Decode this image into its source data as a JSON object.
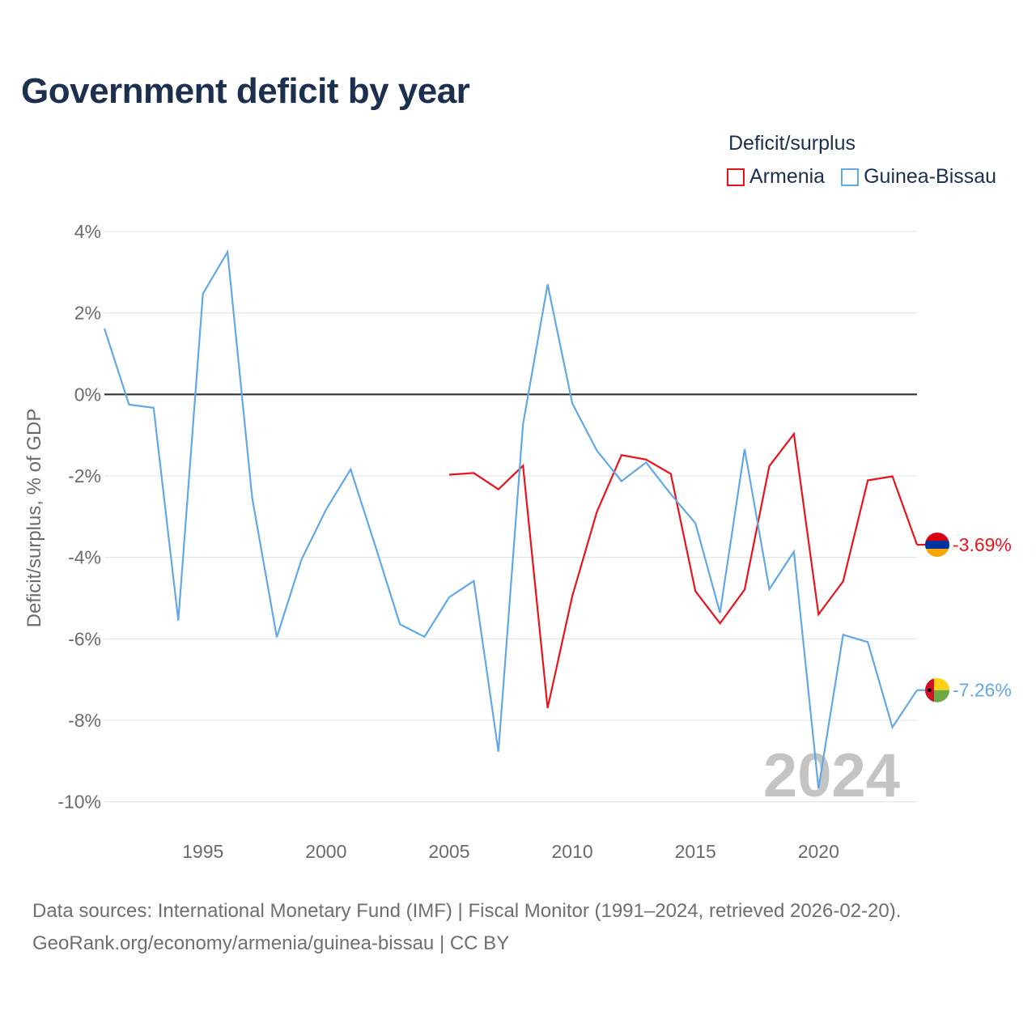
{
  "title": "Government deficit by year",
  "legend": {
    "title": "Deficit/surplus",
    "items": [
      {
        "name": "Armenia",
        "color": "#e8141c"
      },
      {
        "name": "Guinea-Bissau",
        "color": "#62a8e5"
      }
    ]
  },
  "chart_data": {
    "type": "line",
    "ylabel": "Deficit/surplus, % of GDP",
    "xlabel": "",
    "xlim": [
      1991,
      2024
    ],
    "ylim": [
      -10.6,
      4
    ],
    "yticks": [
      4,
      2,
      0,
      -2,
      -4,
      -6,
      -8,
      -10
    ],
    "ytick_labels": [
      "4%",
      "2%",
      "0%",
      "-2%",
      "-4%",
      "-6%",
      "-8%",
      "-10%"
    ],
    "xticks": [
      1995,
      2000,
      2005,
      2010,
      2015,
      2020
    ],
    "xtick_labels": [
      "1995",
      "2000",
      "2005",
      "2010",
      "2015",
      "2020"
    ],
    "year_watermark": "2024",
    "series": [
      {
        "name": "Armenia",
        "color": "#e8141c",
        "end_label": "-3.69%",
        "x": [
          2005,
          2006,
          2007,
          2008,
          2009,
          2010,
          2011,
          2012,
          2013,
          2014,
          2015,
          2016,
          2017,
          2018,
          2019,
          2020,
          2021,
          2022,
          2023,
          2024
        ],
        "values": [
          -1.97,
          -1.93,
          -2.33,
          -1.75,
          -7.7,
          -4.95,
          -2.88,
          -1.49,
          -1.6,
          -1.95,
          -4.83,
          -5.62,
          -4.79,
          -1.76,
          -0.97,
          -5.4,
          -4.59,
          -2.11,
          -2.01,
          -3.69
        ]
      },
      {
        "name": "Guinea-Bissau",
        "color": "#62a8e5",
        "end_label": "-7.26%",
        "x": [
          1991,
          1992,
          1993,
          1994,
          1995,
          1996,
          1997,
          1998,
          1999,
          2000,
          2001,
          2002,
          2003,
          2004,
          2005,
          2006,
          2007,
          2008,
          2009,
          2010,
          2011,
          2012,
          2013,
          2014,
          2015,
          2016,
          2017,
          2018,
          2019,
          2020,
          2021,
          2022,
          2023,
          2024
        ],
        "values": [
          1.62,
          -0.25,
          -0.33,
          -5.55,
          2.47,
          3.5,
          -2.53,
          -5.96,
          -4.06,
          -2.83,
          -1.84,
          -3.72,
          -5.64,
          -5.95,
          -4.98,
          -4.58,
          -8.77,
          -0.73,
          2.7,
          -0.22,
          -1.38,
          -2.13,
          -1.67,
          -2.45,
          -3.16,
          -5.36,
          -1.34,
          -4.78,
          -3.86,
          -9.67,
          -5.9,
          -6.08,
          -8.17,
          -7.26
        ]
      }
    ]
  },
  "footer": {
    "line1": "Data sources: International Monetary Fund (IMF) | Fiscal Monitor (1991–2024, retrieved 2026-02-20).",
    "line2": "GeoRank.org/economy/armenia/guinea-bissau | CC BY"
  }
}
